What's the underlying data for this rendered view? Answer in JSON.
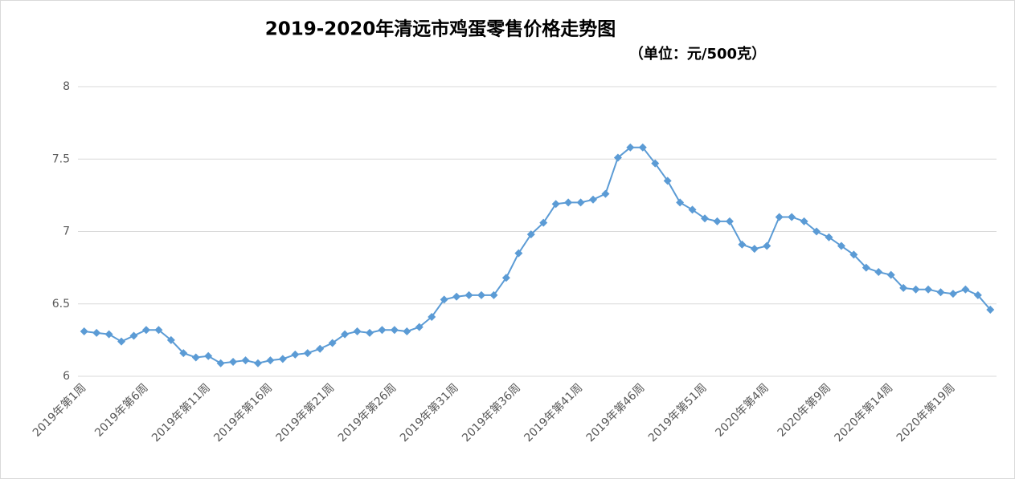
{
  "chart_data": {
    "type": "line",
    "title": "2019-2020年清远市鸡蛋零售价格走势图",
    "subtitle": "（单位：元/500克）",
    "categories": [
      "2019年第1周",
      null,
      null,
      null,
      null,
      "2019年第6周",
      null,
      null,
      null,
      null,
      "2019年第11周",
      null,
      null,
      null,
      null,
      "2019年第16周",
      null,
      null,
      null,
      null,
      "2019年第21周",
      null,
      null,
      null,
      null,
      "2019年第26周",
      null,
      null,
      null,
      null,
      "2019年第31周",
      null,
      null,
      null,
      null,
      "2019年第36周",
      null,
      null,
      null,
      null,
      "2019年第41周",
      null,
      null,
      null,
      null,
      "2019年第46周",
      null,
      null,
      null,
      null,
      "2019年第51周",
      null,
      null,
      null,
      null,
      "2020年第4周",
      null,
      null,
      null,
      null,
      "2020年第9周",
      null,
      null,
      null,
      null,
      "2020年第14周",
      null,
      null,
      null,
      null,
      "2020年第19周",
      null,
      null,
      null
    ],
    "series": [
      {
        "color": "#5b9bd5",
        "values": [
          6.31,
          6.3,
          6.29,
          6.24,
          6.28,
          6.32,
          6.32,
          6.25,
          6.16,
          6.13,
          6.14,
          6.09,
          6.1,
          6.11,
          6.09,
          6.11,
          6.12,
          6.15,
          6.16,
          6.19,
          6.23,
          6.29,
          6.31,
          6.3,
          6.32,
          6.32,
          6.31,
          6.34,
          6.41,
          6.53,
          6.55,
          6.56,
          6.56,
          6.56,
          6.68,
          6.85,
          6.98,
          7.06,
          7.19,
          7.2,
          7.2,
          7.22,
          7.26,
          7.51,
          7.58,
          7.58,
          7.47,
          7.35,
          7.2,
          7.15,
          7.09,
          7.07,
          7.07,
          6.91,
          6.88,
          6.9,
          7.1,
          7.1,
          7.07,
          7.0,
          6.96,
          6.9,
          6.84,
          6.75,
          6.72,
          6.7,
          6.61,
          6.6,
          6.6,
          6.58,
          6.57,
          6.6,
          6.56,
          6.46
        ]
      }
    ],
    "ylim": [
      6,
      8
    ],
    "yticks": [
      6,
      6.5,
      7,
      7.5,
      8
    ],
    "grid": true
  }
}
